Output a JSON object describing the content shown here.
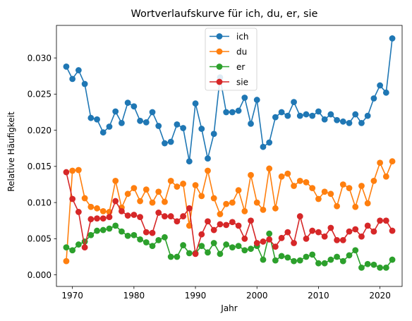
{
  "chart_data": {
    "type": "line",
    "title": "Wortverlaufskurve für ich, du, er, sie",
    "xlabel": "Jahr",
    "ylabel": "Relative Häufigkeit",
    "xlim": [
      1967.4,
      2023.6
    ],
    "ylim": [
      -0.0016,
      0.0345
    ],
    "xticks": [
      1970,
      1980,
      1990,
      2000,
      2010,
      2020
    ],
    "yticks": [
      0.0,
      0.005,
      0.01,
      0.015,
      0.02,
      0.025,
      0.03
    ],
    "ytick_labels": [
      "0.000",
      "0.005",
      "0.010",
      "0.015",
      "0.020",
      "0.025",
      "0.030"
    ],
    "grid": false,
    "legend_position": "top-center",
    "x": [
      1969,
      1970,
      1971,
      1972,
      1973,
      1974,
      1975,
      1976,
      1977,
      1978,
      1979,
      1980,
      1981,
      1982,
      1983,
      1984,
      1985,
      1986,
      1987,
      1988,
      1989,
      1990,
      1991,
      1992,
      1993,
      1994,
      1995,
      1996,
      1997,
      1998,
      1999,
      2000,
      2001,
      2002,
      2003,
      2004,
      2005,
      2006,
      2007,
      2008,
      2009,
      2010,
      2011,
      2012,
      2013,
      2014,
      2015,
      2016,
      2017,
      2018,
      2019,
      2020,
      2021,
      2022
    ],
    "series": [
      {
        "name": "ich",
        "color": "#1f77b4",
        "values": [
          0.0288,
          0.0271,
          0.0283,
          0.0264,
          0.0217,
          0.0215,
          0.0197,
          0.0205,
          0.0226,
          0.021,
          0.0238,
          0.0233,
          0.0213,
          0.0211,
          0.0225,
          0.0206,
          0.0182,
          0.0184,
          0.0208,
          0.0203,
          0.0157,
          0.0237,
          0.0202,
          0.0161,
          0.0195,
          0.0273,
          0.0225,
          0.0225,
          0.0227,
          0.0245,
          0.0209,
          0.0242,
          0.0177,
          0.0183,
          0.0218,
          0.0225,
          0.022,
          0.0239,
          0.022,
          0.0222,
          0.022,
          0.0226,
          0.0215,
          0.0222,
          0.0214,
          0.0212,
          0.021,
          0.0222,
          0.021,
          0.022,
          0.0244,
          0.0262,
          0.0252,
          0.0327
        ]
      },
      {
        "name": "du",
        "color": "#ff7f0e",
        "values": [
          0.0019,
          0.0144,
          0.0145,
          0.0106,
          0.0094,
          0.0092,
          0.0088,
          0.0087,
          0.013,
          0.0093,
          0.0112,
          0.012,
          0.0102,
          0.0118,
          0.01,
          0.0115,
          0.0101,
          0.013,
          0.0122,
          0.0126,
          0.0068,
          0.0124,
          0.0109,
          0.0144,
          0.0106,
          0.0084,
          0.0098,
          0.01,
          0.0117,
          0.0088,
          0.0138,
          0.01,
          0.009,
          0.0147,
          0.0092,
          0.0136,
          0.014,
          0.0123,
          0.013,
          0.0128,
          0.012,
          0.0105,
          0.0115,
          0.0112,
          0.0095,
          0.0125,
          0.012,
          0.0094,
          0.0123,
          0.0099,
          0.013,
          0.0155,
          0.0136,
          0.0157
        ]
      },
      {
        "name": "er",
        "color": "#2ca02c",
        "values": [
          0.0038,
          0.0034,
          0.0042,
          0.0046,
          0.0055,
          0.0061,
          0.0062,
          0.0064,
          0.0068,
          0.006,
          0.0054,
          0.0055,
          0.0049,
          0.0045,
          0.004,
          0.0048,
          0.0052,
          0.0025,
          0.0025,
          0.0041,
          0.003,
          0.003,
          0.004,
          0.0031,
          0.0044,
          0.0029,
          0.0042,
          0.0038,
          0.004,
          0.0034,
          0.0036,
          0.004,
          0.0021,
          0.0057,
          0.002,
          0.0026,
          0.0024,
          0.0019,
          0.002,
          0.0025,
          0.0028,
          0.0016,
          0.0016,
          0.0021,
          0.0025,
          0.0019,
          0.0027,
          0.0034,
          0.001,
          0.0015,
          0.0014,
          0.001,
          0.001,
          0.0021
        ]
      },
      {
        "name": "sie",
        "color": "#d62728",
        "values": [
          0.0142,
          0.0105,
          0.0087,
          0.0038,
          0.0077,
          0.0078,
          0.0078,
          0.008,
          0.0102,
          0.0088,
          0.0082,
          0.0083,
          0.008,
          0.0059,
          0.0058,
          0.0086,
          0.0081,
          0.0081,
          0.0074,
          0.0081,
          0.0092,
          0.0029,
          0.0056,
          0.0074,
          0.0062,
          0.007,
          0.0069,
          0.0073,
          0.0068,
          0.005,
          0.0075,
          0.0044,
          0.0046,
          0.0049,
          0.0039,
          0.0051,
          0.0059,
          0.0044,
          0.0081,
          0.005,
          0.0061,
          0.0059,
          0.0053,
          0.0065,
          0.0048,
          0.0048,
          0.006,
          0.0063,
          0.0053,
          0.0068,
          0.006,
          0.0075,
          0.0075,
          0.0061
        ]
      }
    ]
  }
}
